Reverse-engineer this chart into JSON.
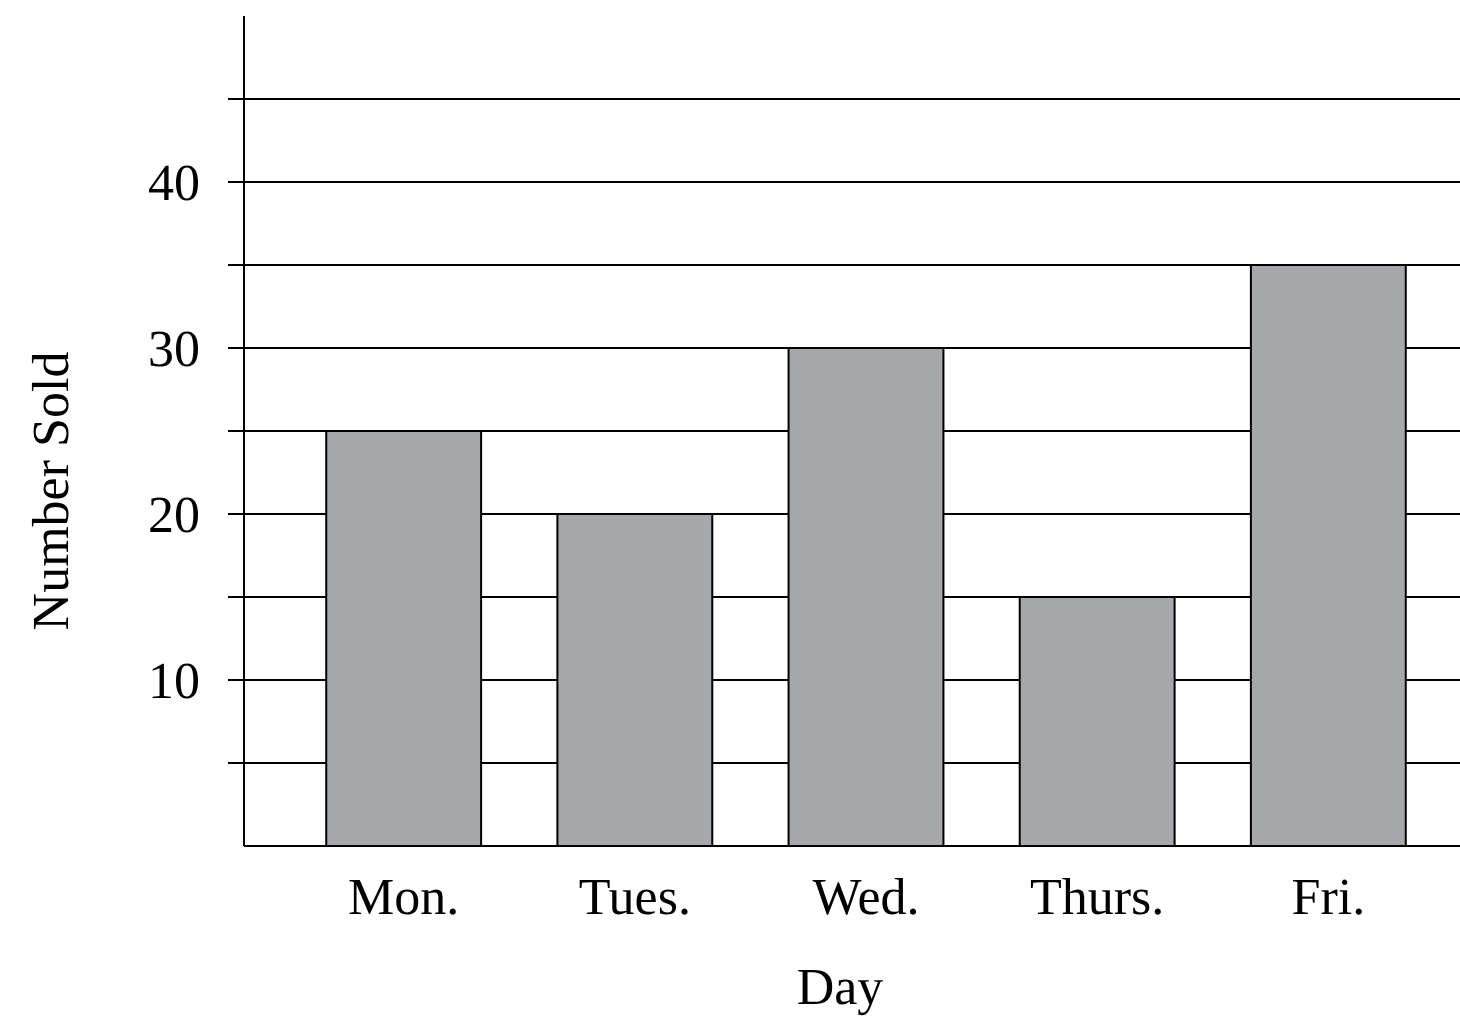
{
  "chart_data": {
    "type": "bar",
    "xlabel": "Day",
    "ylabel": "Number Sold",
    "categories": [
      "Mon.",
      "Tues.",
      "Wed.",
      "Thurs.",
      "Fri."
    ],
    "values": [
      25,
      20,
      30,
      15,
      35
    ],
    "color": "#a6a7aa",
    "ylim": [
      0,
      50
    ],
    "yticks": [
      {
        "value": 5,
        "label": null
      },
      10,
      {
        "value": 15,
        "label": null
      },
      20,
      {
        "value": 25,
        "label": null
      },
      30,
      {
        "value": 35,
        "label": null
      },
      40,
      {
        "value": 45,
        "label": null
      }
    ],
    "grid": "y"
  }
}
